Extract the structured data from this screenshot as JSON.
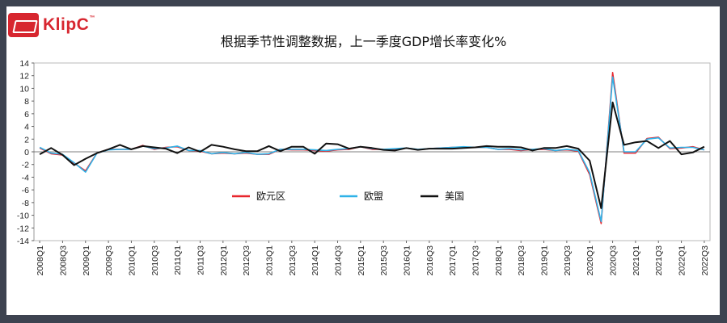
{
  "header": {
    "logo_text": "KlipC",
    "logo_tm": "™",
    "title": "根据季节性调整数据，上一季度GDP增长率变化%"
  },
  "colors": {
    "euro_area": "#e8262d",
    "eu": "#2fb2e8",
    "us": "#111111"
  },
  "chart_data": {
    "type": "line",
    "title": "根据季节性调整数据，上一季度GDP增长率变化%",
    "ylim": [
      -14,
      14
    ],
    "yticks": [
      14,
      12,
      10,
      8,
      6,
      4,
      2,
      0,
      -2,
      -4,
      -6,
      -8,
      -10,
      -12,
      -14
    ],
    "grid": false,
    "legend_position": "lower-center",
    "categories": [
      "2008Q1",
      "2008Q2",
      "2008Q3",
      "2008Q4",
      "2009Q1",
      "2009Q2",
      "2009Q3",
      "2009Q4",
      "2010Q1",
      "2010Q2",
      "2010Q3",
      "2010Q4",
      "2011Q1",
      "2011Q2",
      "2011Q3",
      "2011Q4",
      "2012Q1",
      "2012Q2",
      "2012Q3",
      "2012Q4",
      "2013Q1",
      "2013Q2",
      "2013Q3",
      "2013Q4",
      "2014Q1",
      "2014Q2",
      "2014Q3",
      "2014Q4",
      "2015Q1",
      "2015Q2",
      "2015Q3",
      "2015Q4",
      "2016Q1",
      "2016Q2",
      "2016Q3",
      "2016Q4",
      "2017Q1",
      "2017Q2",
      "2017Q3",
      "2017Q4",
      "2018Q1",
      "2018Q2",
      "2018Q3",
      "2018Q4",
      "2019Q1",
      "2019Q2",
      "2019Q3",
      "2019Q4",
      "2020Q1",
      "2020Q2",
      "2020Q3",
      "2020Q4",
      "2021Q1",
      "2021Q2",
      "2021Q3",
      "2021Q4",
      "2022Q1",
      "2022Q2",
      "2022Q3"
    ],
    "series": [
      {
        "name": "欧元区",
        "color": "#e8262d",
        "values": [
          0.6,
          -0.3,
          -0.5,
          -1.8,
          -3.0,
          -0.2,
          0.4,
          0.4,
          0.4,
          1.0,
          0.4,
          0.7,
          0.8,
          0.2,
          0.1,
          -0.3,
          -0.2,
          -0.3,
          -0.2,
          -0.4,
          -0.4,
          0.4,
          0.3,
          0.3,
          0.2,
          0.1,
          0.3,
          0.4,
          0.8,
          0.4,
          0.4,
          0.4,
          0.6,
          0.3,
          0.5,
          0.6,
          0.7,
          0.7,
          0.7,
          0.7,
          0.4,
          0.4,
          0.2,
          0.4,
          0.4,
          0.2,
          0.3,
          0.1,
          -3.6,
          -11.3,
          12.5,
          -0.2,
          -0.2,
          2.1,
          2.3,
          0.5,
          0.6,
          0.8,
          0.3
        ]
      },
      {
        "name": "欧盟",
        "color": "#2fb2e8",
        "values": [
          0.7,
          -0.2,
          -0.4,
          -1.7,
          -3.2,
          -0.2,
          0.3,
          0.4,
          0.4,
          0.9,
          0.5,
          0.6,
          0.9,
          0.2,
          0.2,
          -0.3,
          -0.1,
          -0.3,
          -0.1,
          -0.4,
          -0.3,
          0.4,
          0.4,
          0.4,
          0.3,
          0.2,
          0.4,
          0.5,
          0.8,
          0.5,
          0.4,
          0.5,
          0.6,
          0.4,
          0.5,
          0.6,
          0.7,
          0.8,
          0.7,
          0.7,
          0.4,
          0.5,
          0.3,
          0.4,
          0.5,
          0.2,
          0.4,
          0.2,
          -3.3,
          -11.0,
          11.8,
          0.0,
          0.0,
          2.0,
          2.2,
          0.6,
          0.7,
          0.7,
          0.3
        ]
      },
      {
        "name": "美国",
        "color": "#111111",
        "values": [
          -0.4,
          0.6,
          -0.5,
          -2.1,
          -1.1,
          -0.2,
          0.4,
          1.1,
          0.4,
          0.9,
          0.7,
          0.5,
          -0.2,
          0.7,
          0.0,
          1.1,
          0.8,
          0.4,
          0.1,
          0.1,
          0.9,
          0.1,
          0.8,
          0.8,
          -0.3,
          1.3,
          1.2,
          0.5,
          0.8,
          0.6,
          0.3,
          0.2,
          0.6,
          0.3,
          0.5,
          0.5,
          0.5,
          0.6,
          0.7,
          0.9,
          0.8,
          0.8,
          0.7,
          0.2,
          0.6,
          0.6,
          0.9,
          0.5,
          -1.4,
          -8.9,
          7.8,
          1.1,
          1.5,
          1.7,
          0.6,
          1.7,
          -0.4,
          -0.1,
          0.8
        ]
      }
    ]
  }
}
